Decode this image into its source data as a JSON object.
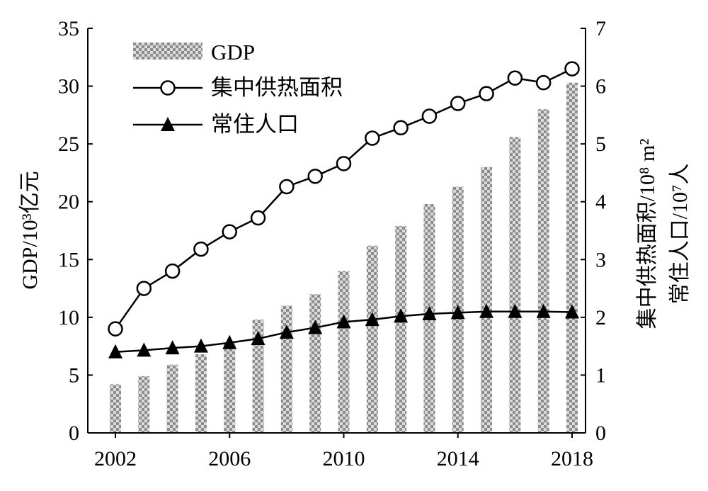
{
  "chart_data": {
    "type": "bar+line",
    "x": [
      2002,
      2003,
      2004,
      2005,
      2006,
      2007,
      2008,
      2009,
      2010,
      2011,
      2012,
      2013,
      2014,
      2015,
      2016,
      2017,
      2018
    ],
    "x_tick_labels": [
      "2002",
      "2006",
      "2010",
      "2014",
      "2018"
    ],
    "left_axis": {
      "label": "GDP/10³亿元",
      "ylim": [
        0,
        35
      ],
      "ticks": [
        "0",
        "5",
        "10",
        "15",
        "20",
        "25",
        "30",
        "35"
      ]
    },
    "right_axis": {
      "label_line1": "集中供热面积/10⁸ m²",
      "label_line2": "常住人口/10⁷人",
      "ylim": [
        0,
        7
      ],
      "ticks": [
        "0",
        "1",
        "2",
        "3",
        "4",
        "5",
        "6",
        "7"
      ]
    },
    "series": [
      {
        "name": "GDP",
        "type": "bar",
        "axis": "left",
        "values": [
          4.2,
          4.9,
          5.9,
          6.8,
          7.8,
          9.8,
          11.0,
          12.0,
          14.0,
          16.2,
          17.9,
          19.8,
          21.3,
          23.0,
          25.6,
          28.0,
          30.3
        ]
      },
      {
        "name": "集中供热面积",
        "type": "line",
        "marker": "circle",
        "axis": "right",
        "values": [
          1.8,
          2.5,
          2.8,
          3.18,
          3.48,
          3.72,
          4.26,
          4.44,
          4.66,
          5.1,
          5.28,
          5.48,
          5.7,
          5.87,
          6.14,
          6.06,
          6.3
        ]
      },
      {
        "name": "常住人口",
        "type": "line",
        "marker": "triangle",
        "axis": "right",
        "values": [
          1.4,
          1.43,
          1.47,
          1.5,
          1.56,
          1.63,
          1.74,
          1.82,
          1.92,
          1.96,
          2.02,
          2.06,
          2.08,
          2.1,
          2.1,
          2.1,
          2.09
        ]
      }
    ],
    "legend": {
      "placement": "top-left",
      "items": [
        "GDP",
        "集中供热面积",
        "常住人口"
      ]
    },
    "colors": {
      "bar_dark": "#8c8c8c",
      "bar_light": "#dcdcdc",
      "line": "#000000"
    }
  }
}
